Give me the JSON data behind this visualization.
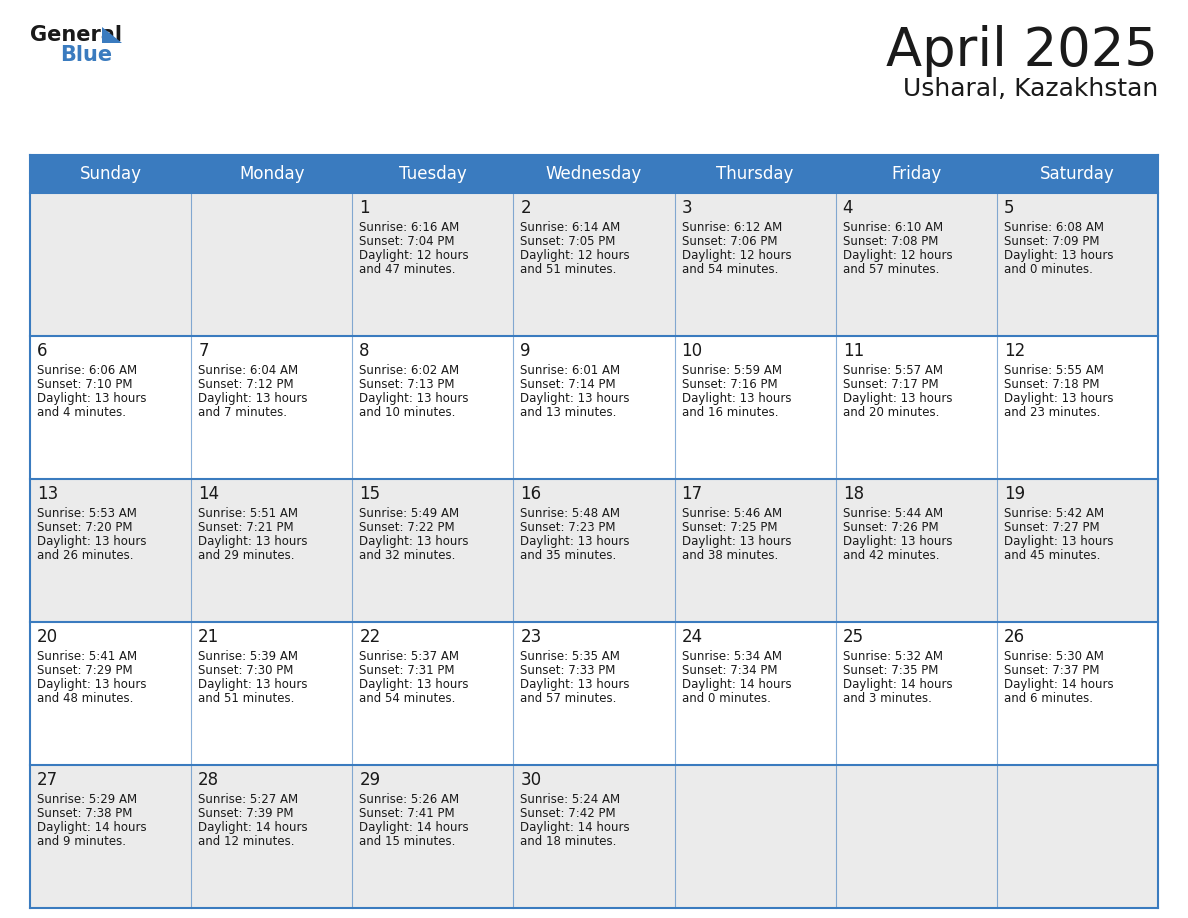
{
  "title": "April 2025",
  "subtitle": "Usharal, Kazakhstan",
  "header_bg_color": "#3a7bbf",
  "header_text_color": "#ffffff",
  "cell_bg_color_light": "#ebebeb",
  "cell_bg_color_white": "#ffffff",
  "border_color": "#3a7bbf",
  "text_color": "#1a1a1a",
  "day_names": [
    "Sunday",
    "Monday",
    "Tuesday",
    "Wednesday",
    "Thursday",
    "Friday",
    "Saturday"
  ],
  "days": [
    {
      "day": 1,
      "col": 2,
      "row": 0,
      "sunrise": "6:16 AM",
      "sunset": "7:04 PM",
      "daylight_line1": "Daylight: 12 hours",
      "daylight_line2": "and 47 minutes."
    },
    {
      "day": 2,
      "col": 3,
      "row": 0,
      "sunrise": "6:14 AM",
      "sunset": "7:05 PM",
      "daylight_line1": "Daylight: 12 hours",
      "daylight_line2": "and 51 minutes."
    },
    {
      "day": 3,
      "col": 4,
      "row": 0,
      "sunrise": "6:12 AM",
      "sunset": "7:06 PM",
      "daylight_line1": "Daylight: 12 hours",
      "daylight_line2": "and 54 minutes."
    },
    {
      "day": 4,
      "col": 5,
      "row": 0,
      "sunrise": "6:10 AM",
      "sunset": "7:08 PM",
      "daylight_line1": "Daylight: 12 hours",
      "daylight_line2": "and 57 minutes."
    },
    {
      "day": 5,
      "col": 6,
      "row": 0,
      "sunrise": "6:08 AM",
      "sunset": "7:09 PM",
      "daylight_line1": "Daylight: 13 hours",
      "daylight_line2": "and 0 minutes."
    },
    {
      "day": 6,
      "col": 0,
      "row": 1,
      "sunrise": "6:06 AM",
      "sunset": "7:10 PM",
      "daylight_line1": "Daylight: 13 hours",
      "daylight_line2": "and 4 minutes."
    },
    {
      "day": 7,
      "col": 1,
      "row": 1,
      "sunrise": "6:04 AM",
      "sunset": "7:12 PM",
      "daylight_line1": "Daylight: 13 hours",
      "daylight_line2": "and 7 minutes."
    },
    {
      "day": 8,
      "col": 2,
      "row": 1,
      "sunrise": "6:02 AM",
      "sunset": "7:13 PM",
      "daylight_line1": "Daylight: 13 hours",
      "daylight_line2": "and 10 minutes."
    },
    {
      "day": 9,
      "col": 3,
      "row": 1,
      "sunrise": "6:01 AM",
      "sunset": "7:14 PM",
      "daylight_line1": "Daylight: 13 hours",
      "daylight_line2": "and 13 minutes."
    },
    {
      "day": 10,
      "col": 4,
      "row": 1,
      "sunrise": "5:59 AM",
      "sunset": "7:16 PM",
      "daylight_line1": "Daylight: 13 hours",
      "daylight_line2": "and 16 minutes."
    },
    {
      "day": 11,
      "col": 5,
      "row": 1,
      "sunrise": "5:57 AM",
      "sunset": "7:17 PM",
      "daylight_line1": "Daylight: 13 hours",
      "daylight_line2": "and 20 minutes."
    },
    {
      "day": 12,
      "col": 6,
      "row": 1,
      "sunrise": "5:55 AM",
      "sunset": "7:18 PM",
      "daylight_line1": "Daylight: 13 hours",
      "daylight_line2": "and 23 minutes."
    },
    {
      "day": 13,
      "col": 0,
      "row": 2,
      "sunrise": "5:53 AM",
      "sunset": "7:20 PM",
      "daylight_line1": "Daylight: 13 hours",
      "daylight_line2": "and 26 minutes."
    },
    {
      "day": 14,
      "col": 1,
      "row": 2,
      "sunrise": "5:51 AM",
      "sunset": "7:21 PM",
      "daylight_line1": "Daylight: 13 hours",
      "daylight_line2": "and 29 minutes."
    },
    {
      "day": 15,
      "col": 2,
      "row": 2,
      "sunrise": "5:49 AM",
      "sunset": "7:22 PM",
      "daylight_line1": "Daylight: 13 hours",
      "daylight_line2": "and 32 minutes."
    },
    {
      "day": 16,
      "col": 3,
      "row": 2,
      "sunrise": "5:48 AM",
      "sunset": "7:23 PM",
      "daylight_line1": "Daylight: 13 hours",
      "daylight_line2": "and 35 minutes."
    },
    {
      "day": 17,
      "col": 4,
      "row": 2,
      "sunrise": "5:46 AM",
      "sunset": "7:25 PM",
      "daylight_line1": "Daylight: 13 hours",
      "daylight_line2": "and 38 minutes."
    },
    {
      "day": 18,
      "col": 5,
      "row": 2,
      "sunrise": "5:44 AM",
      "sunset": "7:26 PM",
      "daylight_line1": "Daylight: 13 hours",
      "daylight_line2": "and 42 minutes."
    },
    {
      "day": 19,
      "col": 6,
      "row": 2,
      "sunrise": "5:42 AM",
      "sunset": "7:27 PM",
      "daylight_line1": "Daylight: 13 hours",
      "daylight_line2": "and 45 minutes."
    },
    {
      "day": 20,
      "col": 0,
      "row": 3,
      "sunrise": "5:41 AM",
      "sunset": "7:29 PM",
      "daylight_line1": "Daylight: 13 hours",
      "daylight_line2": "and 48 minutes."
    },
    {
      "day": 21,
      "col": 1,
      "row": 3,
      "sunrise": "5:39 AM",
      "sunset": "7:30 PM",
      "daylight_line1": "Daylight: 13 hours",
      "daylight_line2": "and 51 minutes."
    },
    {
      "day": 22,
      "col": 2,
      "row": 3,
      "sunrise": "5:37 AM",
      "sunset": "7:31 PM",
      "daylight_line1": "Daylight: 13 hours",
      "daylight_line2": "and 54 minutes."
    },
    {
      "day": 23,
      "col": 3,
      "row": 3,
      "sunrise": "5:35 AM",
      "sunset": "7:33 PM",
      "daylight_line1": "Daylight: 13 hours",
      "daylight_line2": "and 57 minutes."
    },
    {
      "day": 24,
      "col": 4,
      "row": 3,
      "sunrise": "5:34 AM",
      "sunset": "7:34 PM",
      "daylight_line1": "Daylight: 14 hours",
      "daylight_line2": "and 0 minutes."
    },
    {
      "day": 25,
      "col": 5,
      "row": 3,
      "sunrise": "5:32 AM",
      "sunset": "7:35 PM",
      "daylight_line1": "Daylight: 14 hours",
      "daylight_line2": "and 3 minutes."
    },
    {
      "day": 26,
      "col": 6,
      "row": 3,
      "sunrise": "5:30 AM",
      "sunset": "7:37 PM",
      "daylight_line1": "Daylight: 14 hours",
      "daylight_line2": "and 6 minutes."
    },
    {
      "day": 27,
      "col": 0,
      "row": 4,
      "sunrise": "5:29 AM",
      "sunset": "7:38 PM",
      "daylight_line1": "Daylight: 14 hours",
      "daylight_line2": "and 9 minutes."
    },
    {
      "day": 28,
      "col": 1,
      "row": 4,
      "sunrise": "5:27 AM",
      "sunset": "7:39 PM",
      "daylight_line1": "Daylight: 14 hours",
      "daylight_line2": "and 12 minutes."
    },
    {
      "day": 29,
      "col": 2,
      "row": 4,
      "sunrise": "5:26 AM",
      "sunset": "7:41 PM",
      "daylight_line1": "Daylight: 14 hours",
      "daylight_line2": "and 15 minutes."
    },
    {
      "day": 30,
      "col": 3,
      "row": 4,
      "sunrise": "5:24 AM",
      "sunset": "7:42 PM",
      "daylight_line1": "Daylight: 14 hours",
      "daylight_line2": "and 18 minutes."
    }
  ],
  "logo_general_color": "#1a1a1a",
  "logo_blue_color": "#3a7bbf",
  "title_fontsize": 38,
  "subtitle_fontsize": 18,
  "header_fontsize": 12,
  "day_num_fontsize": 12,
  "cell_text_fontsize": 8.5
}
